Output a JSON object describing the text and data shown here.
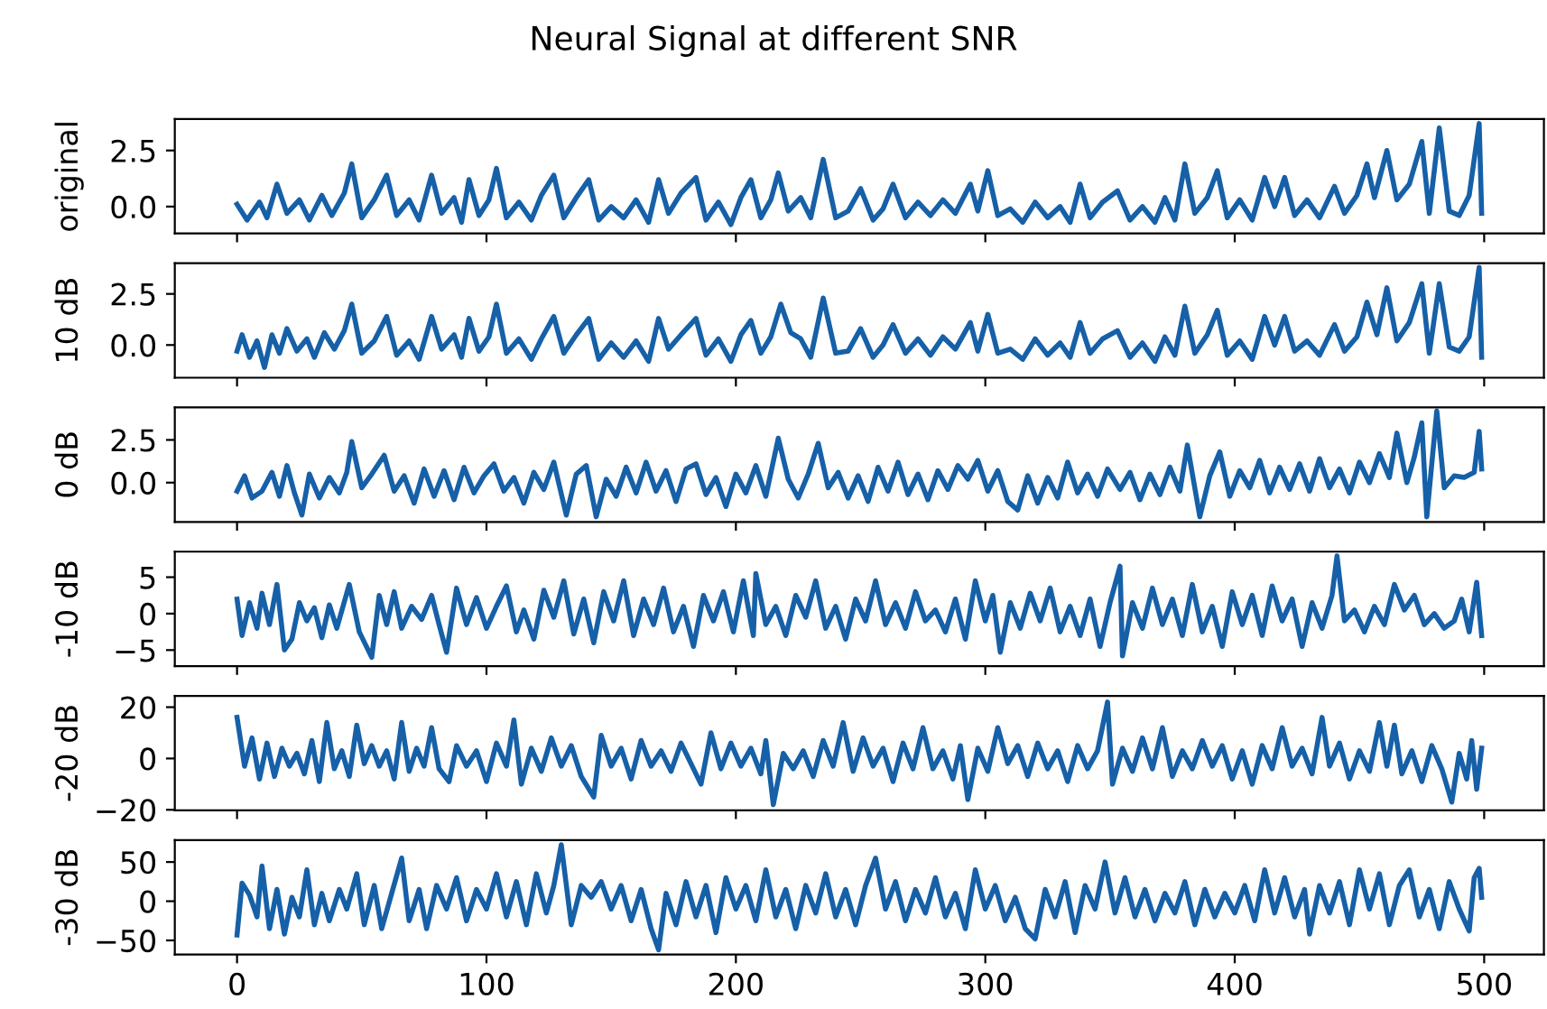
{
  "chart_data": [
    {
      "type": "line",
      "title": "Neural Signal at different SNR",
      "ylabel": "original",
      "xlim": [
        -24.95,
        523.95
      ],
      "xticks": [
        0,
        100,
        200,
        300,
        400,
        500
      ],
      "ylim": [
        -1.2,
        3.9
      ],
      "yticks": [
        {
          "value": 0,
          "label": "0.0"
        },
        {
          "value": 2.5,
          "label": "2.5"
        }
      ],
      "tick_labels": "y",
      "grid": false,
      "series": [
        {
          "color": "#1660a8",
          "x": [
            0,
            4,
            9,
            12,
            16,
            20,
            25,
            29,
            34,
            38,
            43,
            46,
            50,
            55,
            60,
            64,
            69,
            73,
            78,
            82,
            87,
            90,
            93,
            97,
            101,
            104,
            108,
            113,
            118,
            122,
            127,
            131,
            136,
            141,
            145,
            150,
            155,
            160,
            165,
            169,
            173,
            178,
            184,
            188,
            193,
            198,
            202,
            206,
            210,
            214,
            217,
            221,
            226,
            230,
            235,
            240,
            245,
            250,
            255,
            259,
            263,
            268,
            273,
            278,
            283,
            288,
            294,
            297,
            301,
            305,
            310,
            315,
            320,
            325,
            330,
            334,
            338,
            342,
            347,
            353,
            358,
            363,
            368,
            372,
            376,
            380,
            384,
            389,
            393,
            397,
            402,
            407,
            412,
            416,
            420,
            424,
            429,
            434,
            440,
            444,
            449,
            453,
            456,
            461,
            465,
            470,
            475,
            478,
            482,
            486,
            490,
            494,
            498,
            499
          ],
          "values": [
            0.1,
            -0.6,
            0.2,
            -0.5,
            1.0,
            -0.3,
            0.3,
            -0.6,
            0.5,
            -0.4,
            0.6,
            1.9,
            -0.5,
            0.3,
            1.4,
            -0.4,
            0.3,
            -0.6,
            1.4,
            -0.3,
            0.4,
            -0.7,
            1.2,
            -0.4,
            0.3,
            1.7,
            -0.5,
            0.2,
            -0.6,
            0.5,
            1.4,
            -0.5,
            0.4,
            1.2,
            -0.6,
            0.0,
            -0.5,
            0.3,
            -0.7,
            1.2,
            -0.3,
            0.6,
            1.3,
            -0.6,
            0.2,
            -0.8,
            0.4,
            1.2,
            -0.5,
            0.3,
            1.5,
            -0.2,
            0.4,
            -0.5,
            2.1,
            -0.5,
            -0.2,
            0.8,
            -0.6,
            -0.1,
            1.0,
            -0.5,
            0.2,
            -0.4,
            0.3,
            -0.3,
            1.0,
            -0.2,
            1.6,
            -0.4,
            -0.1,
            -0.7,
            0.2,
            -0.5,
            0.0,
            -0.7,
            1.0,
            -0.5,
            0.2,
            0.7,
            -0.6,
            0.0,
            -0.7,
            0.4,
            -0.6,
            1.9,
            -0.3,
            0.4,
            1.6,
            -0.5,
            0.3,
            -0.6,
            1.3,
            0.0,
            1.3,
            -0.4,
            0.3,
            -0.5,
            0.9,
            -0.3,
            0.5,
            1.9,
            0.4,
            2.5,
            0.3,
            1.0,
            2.9,
            -0.3,
            3.5,
            -0.2,
            -0.4,
            0.5,
            3.7,
            -0.3
          ]
        }
      ]
    },
    {
      "type": "line",
      "ylabel": "10 dB",
      "xlim": [
        -24.95,
        523.95
      ],
      "xticks": [
        0,
        100,
        200,
        300,
        400,
        500
      ],
      "ylim": [
        -1.6,
        4.0
      ],
      "yticks": [
        {
          "value": 0,
          "label": "0.0"
        },
        {
          "value": 2.5,
          "label": "2.5"
        }
      ],
      "tick_labels": "y",
      "grid": false,
      "series": [
        {
          "color": "#1660a8",
          "x": [
            0,
            2,
            5,
            8,
            11,
            14,
            17,
            20,
            24,
            28,
            31,
            35,
            39,
            43,
            46,
            50,
            55,
            60,
            64,
            69,
            73,
            78,
            82,
            87,
            90,
            93,
            97,
            101,
            104,
            108,
            113,
            118,
            122,
            127,
            131,
            136,
            141,
            145,
            150,
            155,
            160,
            165,
            169,
            173,
            178,
            184,
            188,
            193,
            198,
            202,
            206,
            210,
            214,
            218,
            222,
            226,
            230,
            235,
            240,
            245,
            250,
            255,
            259,
            263,
            268,
            273,
            278,
            283,
            288,
            294,
            297,
            301,
            305,
            310,
            315,
            320,
            325,
            330,
            334,
            338,
            342,
            347,
            353,
            358,
            363,
            368,
            372,
            376,
            380,
            384,
            389,
            393,
            397,
            402,
            407,
            412,
            416,
            420,
            424,
            429,
            434,
            440,
            444,
            449,
            453,
            457,
            461,
            465,
            470,
            475,
            478,
            482,
            486,
            490,
            494,
            498,
            499
          ],
          "values": [
            -0.3,
            0.5,
            -0.6,
            0.2,
            -1.1,
            0.5,
            -0.4,
            0.8,
            -0.3,
            0.3,
            -0.6,
            0.6,
            -0.2,
            0.7,
            2.0,
            -0.4,
            0.2,
            1.4,
            -0.5,
            0.2,
            -0.7,
            1.4,
            -0.2,
            0.5,
            -0.6,
            1.3,
            -0.3,
            0.4,
            2.0,
            -0.4,
            0.3,
            -0.7,
            0.3,
            1.4,
            -0.4,
            0.5,
            1.3,
            -0.7,
            0.1,
            -0.6,
            0.2,
            -0.8,
            1.3,
            -0.2,
            0.5,
            1.3,
            -0.5,
            0.3,
            -0.8,
            0.5,
            1.2,
            -0.4,
            0.4,
            2.0,
            0.6,
            0.3,
            -0.6,
            2.3,
            -0.4,
            -0.3,
            0.8,
            -0.6,
            0.0,
            1.0,
            -0.4,
            0.3,
            -0.5,
            0.4,
            -0.2,
            1.1,
            -0.3,
            1.5,
            -0.4,
            -0.2,
            -0.7,
            0.3,
            -0.5,
            0.1,
            -0.6,
            1.1,
            -0.4,
            0.3,
            0.7,
            -0.6,
            0.1,
            -0.8,
            0.4,
            -0.5,
            1.9,
            -0.4,
            0.5,
            1.7,
            -0.5,
            0.2,
            -0.7,
            1.4,
            0.0,
            1.4,
            -0.3,
            0.2,
            -0.5,
            1.0,
            -0.3,
            0.4,
            2.1,
            0.5,
            2.8,
            0.2,
            1.1,
            3.0,
            -0.4,
            3.0,
            -0.1,
            -0.3,
            0.4,
            3.8,
            -0.6
          ]
        }
      ]
    },
    {
      "type": "line",
      "ylabel": "0 dB",
      "xlim": [
        -24.95,
        523.95
      ],
      "xticks": [
        0,
        100,
        200,
        300,
        400,
        500
      ],
      "ylim": [
        -2.3,
        4.4
      ],
      "yticks": [
        {
          "value": 0,
          "label": "0.0"
        },
        {
          "value": 2.5,
          "label": "2.5"
        }
      ],
      "tick_labels": "y",
      "grid": false,
      "series": [
        {
          "color": "#1660a8",
          "x": [
            0,
            3,
            6,
            10,
            14,
            17,
            20,
            23,
            26,
            29,
            33,
            37,
            41,
            44,
            46,
            50,
            54,
            59,
            63,
            67,
            71,
            75,
            79,
            83,
            87,
            91,
            95,
            99,
            103,
            107,
            111,
            115,
            119,
            123,
            127,
            132,
            136,
            140,
            144,
            148,
            152,
            156,
            160,
            164,
            168,
            172,
            176,
            180,
            184,
            188,
            192,
            196,
            200,
            204,
            208,
            212,
            217,
            221,
            225,
            229,
            233,
            237,
            241,
            245,
            249,
            253,
            257,
            261,
            265,
            269,
            273,
            277,
            281,
            285,
            289,
            293,
            297,
            301,
            305,
            309,
            313,
            317,
            321,
            325,
            329,
            333,
            337,
            341,
            345,
            349,
            354,
            358,
            362,
            366,
            370,
            374,
            378,
            381,
            386,
            390,
            394,
            398,
            402,
            406,
            410,
            414,
            418,
            422,
            426,
            430,
            434,
            438,
            442,
            446,
            450,
            454,
            458,
            462,
            465,
            469,
            472,
            475,
            477,
            481,
            484,
            488,
            492,
            496,
            498,
            499
          ],
          "values": [
            -0.5,
            0.4,
            -0.9,
            -0.5,
            0.6,
            -0.8,
            1.0,
            -0.6,
            -1.9,
            0.5,
            -0.9,
            0.3,
            -0.6,
            0.6,
            2.4,
            -0.3,
            0.5,
            1.6,
            -0.5,
            0.4,
            -1.2,
            0.8,
            -0.8,
            0.7,
            -1.0,
            0.9,
            -0.6,
            0.4,
            1.1,
            -0.5,
            0.3,
            -1.2,
            0.6,
            -0.4,
            1.2,
            -1.9,
            0.5,
            1.0,
            -2.0,
            0.2,
            -0.8,
            0.9,
            -0.6,
            1.2,
            -0.5,
            0.7,
            -1.1,
            0.8,
            1.1,
            -0.7,
            0.3,
            -1.4,
            0.5,
            -0.6,
            1.0,
            -0.8,
            2.6,
            0.2,
            -0.9,
            0.5,
            2.3,
            -0.3,
            0.6,
            -0.9,
            0.4,
            -1.1,
            0.9,
            -0.5,
            1.2,
            -0.7,
            0.5,
            -1.0,
            0.7,
            -0.4,
            1.0,
            0.2,
            1.3,
            -0.5,
            0.7,
            -1.1,
            -1.6,
            0.4,
            -1.2,
            0.3,
            -0.9,
            1.2,
            -0.6,
            0.5,
            -0.8,
            0.8,
            -0.4,
            0.6,
            -1.0,
            0.5,
            -0.7,
            0.9,
            -0.5,
            2.2,
            -2.0,
            0.4,
            1.8,
            -0.8,
            0.7,
            -0.3,
            1.3,
            -0.6,
            0.9,
            -0.4,
            1.1,
            -0.5,
            1.4,
            -0.3,
            0.8,
            -0.6,
            1.2,
            0.0,
            1.7,
            0.3,
            2.9,
            0.0,
            1.5,
            3.5,
            -2.0,
            4.2,
            -0.3,
            0.4,
            0.3,
            0.6,
            3.0,
            0.8
          ]
        }
      ]
    },
    {
      "type": "line",
      "ylabel": "-10 dB",
      "xlim": [
        -24.95,
        523.95
      ],
      "xticks": [
        0,
        100,
        200,
        300,
        400,
        500
      ],
      "ylim": [
        -7.2,
        8.5
      ],
      "yticks": [
        {
          "value": -5,
          "label": "−5"
        },
        0,
        5
      ],
      "tick_labels": "y",
      "grid": false,
      "series": [
        {
          "color": "#1660a8",
          "x": [
            0,
            2,
            5,
            8,
            10,
            13,
            16,
            19,
            22,
            25,
            28,
            31,
            34,
            37,
            40,
            45,
            49,
            54,
            57,
            60,
            63,
            66,
            70,
            74,
            78,
            81,
            84,
            88,
            92,
            96,
            100,
            104,
            108,
            112,
            115,
            119,
            123,
            127,
            131,
            135,
            139,
            143,
            147,
            151,
            155,
            159,
            163,
            167,
            171,
            175,
            179,
            183,
            187,
            191,
            195,
            199,
            203,
            207,
            208,
            212,
            216,
            220,
            224,
            228,
            232,
            236,
            240,
            244,
            248,
            252,
            256,
            260,
            264,
            268,
            272,
            276,
            280,
            284,
            288,
            292,
            296,
            300,
            303,
            306,
            310,
            314,
            318,
            322,
            326,
            330,
            334,
            338,
            342,
            346,
            350,
            354,
            355,
            359,
            363,
            367,
            371,
            375,
            379,
            383,
            387,
            391,
            395,
            399,
            403,
            407,
            411,
            415,
            419,
            423,
            427,
            431,
            435,
            439,
            441,
            444,
            448,
            452,
            456,
            460,
            464,
            468,
            472,
            476,
            480,
            484,
            488,
            491,
            494,
            497,
            499
          ],
          "values": [
            2.0,
            -3.0,
            1.5,
            -2.0,
            2.8,
            -1.5,
            4.0,
            -5.0,
            -3.5,
            1.5,
            -1.0,
            0.8,
            -3.3,
            1.2,
            -2.0,
            4.0,
            -2.5,
            -6.0,
            2.5,
            -1.5,
            3.0,
            -2.0,
            1.0,
            -0.8,
            2.5,
            -1.5,
            -5.3,
            3.5,
            -1.5,
            2.2,
            -2.0,
            1.0,
            3.8,
            -2.5,
            0.5,
            -3.5,
            3.2,
            -0.5,
            4.5,
            -2.8,
            2.0,
            -4.0,
            3.0,
            -1.0,
            4.5,
            -3.0,
            2.0,
            -1.5,
            3.5,
            -2.5,
            1.0,
            -4.5,
            2.5,
            -1.0,
            3.0,
            -2.5,
            4.5,
            -3.0,
            5.5,
            -1.5,
            1.0,
            -3.0,
            2.5,
            -0.5,
            4.5,
            -2.0,
            1.0,
            -3.5,
            2.0,
            -1.0,
            4.5,
            -1.5,
            1.5,
            -2.0,
            3.0,
            -1.0,
            0.5,
            -2.5,
            2.0,
            -3.5,
            4.5,
            -1.0,
            2.5,
            -5.3,
            1.5,
            -2.0,
            2.8,
            -1.0,
            3.5,
            -2.5,
            1.0,
            -3.0,
            2.0,
            -4.5,
            1.5,
            6.5,
            -5.8,
            1.5,
            -2.0,
            3.5,
            -1.5,
            2.0,
            -3.0,
            4.0,
            -2.5,
            1.0,
            -4.5,
            3.0,
            -1.5,
            2.5,
            -3.0,
            3.8,
            -1.0,
            2.0,
            -4.5,
            1.5,
            -2.0,
            2.5,
            7.9,
            -1.0,
            0.5,
            -2.5,
            1.0,
            -1.5,
            4.0,
            0.5,
            2.5,
            -1.5,
            0.0,
            -2.0,
            -1.0,
            2.0,
            -2.5,
            4.3,
            -3.0
          ]
        }
      ]
    },
    {
      "type": "line",
      "ylabel": "-20 dB",
      "xlim": [
        -24.95,
        523.95
      ],
      "xticks": [
        0,
        100,
        200,
        300,
        400,
        500
      ],
      "ylim": [
        -20.2,
        24.4
      ],
      "yticks": [
        {
          "value": -20,
          "label": "−20"
        },
        0,
        20
      ],
      "tick_labels": "y",
      "grid": false,
      "series": [
        {
          "color": "#1660a8",
          "x": [
            0,
            3,
            6,
            9,
            12,
            15,
            18,
            21,
            24,
            27,
            30,
            33,
            36,
            39,
            42,
            45,
            48,
            51,
            54,
            57,
            60,
            63,
            66,
            69,
            72,
            75,
            78,
            81,
            85,
            88,
            92,
            96,
            100,
            104,
            108,
            111,
            114,
            118,
            122,
            126,
            130,
            134,
            138,
            143,
            146,
            150,
            154,
            158,
            162,
            166,
            170,
            174,
            178,
            182,
            186,
            190,
            194,
            198,
            202,
            206,
            210,
            212,
            215,
            219,
            223,
            227,
            231,
            235,
            239,
            243,
            247,
            251,
            255,
            259,
            263,
            267,
            271,
            275,
            279,
            283,
            287,
            290,
            293,
            297,
            301,
            305,
            309,
            313,
            317,
            321,
            325,
            329,
            333,
            337,
            341,
            345,
            349,
            351,
            355,
            359,
            363,
            367,
            371,
            375,
            379,
            383,
            387,
            391,
            395,
            399,
            403,
            407,
            411,
            415,
            419,
            423,
            427,
            431,
            435,
            438,
            442,
            446,
            450,
            454,
            458,
            461,
            464,
            467,
            471,
            475,
            479,
            483,
            487,
            490,
            493,
            495,
            497,
            499
          ],
          "values": [
            16,
            -3,
            8,
            -8,
            6,
            -7,
            4,
            -3,
            2,
            -6,
            7,
            -9,
            14,
            -4,
            3,
            -7,
            13,
            -2,
            5,
            -3,
            3,
            -8,
            14,
            -5,
            4,
            -3,
            12,
            -4,
            -9,
            5,
            -3,
            3,
            -9,
            6,
            -3,
            15,
            -10,
            4,
            -5,
            8,
            -3,
            5,
            -7,
            -15,
            9,
            -3,
            4,
            -8,
            7,
            -3,
            3,
            -5,
            6,
            -2,
            -10,
            10,
            -4,
            6,
            -3,
            4,
            -6,
            7,
            -18,
            2,
            -4,
            3,
            -7,
            7,
            -3,
            14,
            -5,
            8,
            -3,
            4,
            -9,
            6,
            -4,
            12,
            -4,
            3,
            -8,
            5,
            -16,
            4,
            -5,
            12,
            -2,
            5,
            -7,
            6,
            -4,
            3,
            -9,
            5,
            -4,
            3,
            22,
            -10,
            4,
            -5,
            8,
            -4,
            12,
            -7,
            3,
            -4,
            7,
            -3,
            5,
            -8,
            3,
            -10,
            5,
            -4,
            12,
            -3,
            4,
            -6,
            16,
            -3,
            6,
            -8,
            3,
            -5,
            14,
            -3,
            13,
            -6,
            3,
            -9,
            5,
            -4,
            -17,
            2,
            -8,
            7,
            -12,
            4
          ]
        }
      ]
    },
    {
      "type": "line",
      "ylabel": "-30 dB",
      "xlim": [
        -24.95,
        523.95
      ],
      "xticks": [
        0,
        100,
        200,
        300,
        400,
        500
      ],
      "ylim": [
        -68,
        78
      ],
      "yticks": [
        {
          "value": -50,
          "label": "−50"
        },
        0,
        50
      ],
      "grid": false,
      "series": [
        {
          "color": "#1660a8",
          "x": [
            0,
            2,
            5,
            8,
            10,
            13,
            16,
            19,
            22,
            25,
            28,
            31,
            34,
            37,
            41,
            44,
            48,
            51,
            55,
            58,
            62,
            66,
            69,
            73,
            76,
            80,
            84,
            88,
            92,
            96,
            100,
            104,
            108,
            112,
            116,
            120,
            124,
            127,
            130,
            134,
            138,
            142,
            146,
            150,
            154,
            158,
            162,
            166,
            169,
            172,
            176,
            180,
            184,
            188,
            192,
            196,
            200,
            204,
            208,
            212,
            216,
            220,
            224,
            228,
            232,
            236,
            240,
            244,
            248,
            252,
            256,
            260,
            264,
            268,
            272,
            276,
            280,
            284,
            288,
            292,
            296,
            300,
            304,
            308,
            312,
            316,
            320,
            324,
            328,
            332,
            336,
            340,
            344,
            348,
            352,
            356,
            360,
            364,
            368,
            372,
            376,
            380,
            384,
            388,
            392,
            396,
            400,
            404,
            408,
            412,
            416,
            420,
            424,
            428,
            430,
            434,
            438,
            442,
            446,
            450,
            454,
            458,
            462,
            466,
            470,
            474,
            478,
            482,
            486,
            490,
            494,
            496,
            498,
            499
          ],
          "values": [
            -43,
            23,
            8,
            -20,
            45,
            -35,
            15,
            -42,
            5,
            -20,
            40,
            -30,
            10,
            -25,
            15,
            -10,
            35,
            -30,
            20,
            -35,
            10,
            55,
            -25,
            15,
            -35,
            20,
            -10,
            30,
            -25,
            15,
            -10,
            35,
            -20,
            25,
            -30,
            35,
            -15,
            20,
            72,
            -30,
            20,
            5,
            25,
            -10,
            20,
            -25,
            15,
            -35,
            -62,
            10,
            -30,
            25,
            -20,
            20,
            -40,
            30,
            -10,
            20,
            -25,
            40,
            -20,
            15,
            -35,
            20,
            -15,
            35,
            -20,
            15,
            -30,
            20,
            55,
            -10,
            25,
            -25,
            15,
            -15,
            30,
            -20,
            10,
            -35,
            40,
            -10,
            20,
            -25,
            5,
            -35,
            -48,
            15,
            -20,
            25,
            -40,
            20,
            -10,
            50,
            -15,
            30,
            -20,
            15,
            -25,
            10,
            -15,
            25,
            -30,
            15,
            -20,
            10,
            -15,
            20,
            -25,
            40,
            -15,
            30,
            -20,
            15,
            -42,
            20,
            -15,
            25,
            -30,
            40,
            -10,
            35,
            -30,
            20,
            40,
            -20,
            15,
            -35,
            25,
            -10,
            -38,
            30,
            42,
            5
          ]
        }
      ]
    }
  ]
}
